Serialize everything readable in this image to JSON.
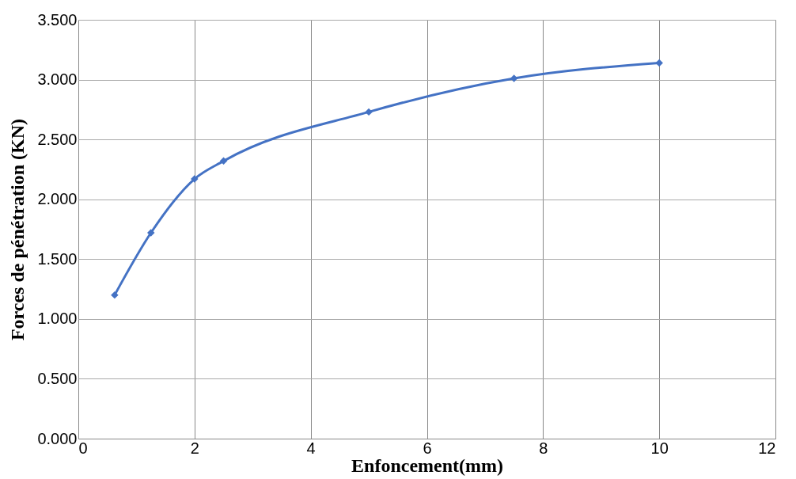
{
  "chart_data": {
    "type": "line",
    "xlabel": "Enfoncement(mm)",
    "ylabel": "Forces de pénétration (KN)",
    "x": [
      0.625,
      1.25,
      2,
      2.5,
      5,
      7.5,
      10
    ],
    "series": [
      {
        "color": "#4472c4",
        "values": [
          1.2,
          1.72,
          2.17,
          2.32,
          2.73,
          3.01,
          3.14
        ]
      }
    ],
    "xlim": [
      0,
      12
    ],
    "xticks": [
      0,
      2,
      4,
      6,
      8,
      10,
      12
    ],
    "ylim": [
      0,
      3.5
    ],
    "yticks": [
      {
        "value": 0,
        "label": "0.000"
      },
      {
        "value": 0.5,
        "label": "0.500"
      },
      {
        "value": 1,
        "label": "1.000"
      },
      {
        "value": 1.5,
        "label": "1.500"
      },
      {
        "value": 2,
        "label": "2.000"
      },
      {
        "value": 2.5,
        "label": "2.500"
      },
      {
        "value": 3,
        "label": "3.000"
      },
      {
        "value": 3.5,
        "label": "3.500"
      }
    ],
    "grid": true,
    "marker": "diamond",
    "line_style": "solid"
  }
}
